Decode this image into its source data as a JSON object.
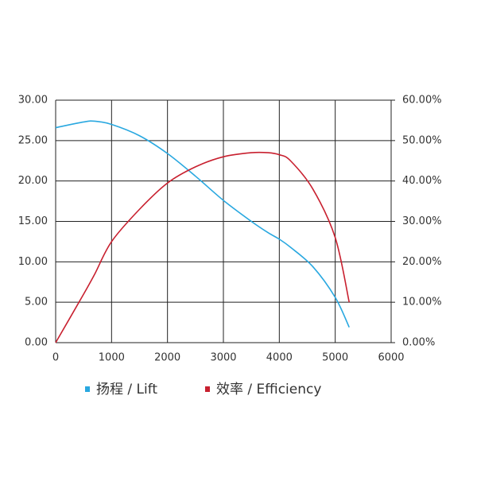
{
  "chart_data": {
    "type": "line",
    "x": [
      0,
      500,
      700,
      1000,
      1500,
      2000,
      2500,
      3000,
      3500,
      3800,
      4000,
      4200,
      4600,
      5000,
      5250
    ],
    "series": [
      {
        "name": "扬程 / Lift",
        "color": "#29a8e0",
        "axis": "y",
        "values": [
          26.6,
          27.3,
          27.4,
          27.0,
          25.6,
          23.4,
          20.6,
          17.6,
          15.0,
          13.6,
          12.8,
          11.8,
          9.4,
          5.6,
          1.9
        ]
      },
      {
        "name": "效率 / Efficiency",
        "color": "#c8202f",
        "axis": "y2",
        "values": [
          0,
          12,
          17,
          25,
          33,
          39.5,
          43.5,
          46,
          47,
          47,
          46.5,
          45,
          38,
          26,
          10
        ]
      }
    ],
    "xlim": [
      0,
      6000
    ],
    "xticks": [
      0,
      1000,
      2000,
      3000,
      4000,
      5000,
      6000
    ],
    "ylim": [
      0,
      30
    ],
    "yticks": [
      {
        "value": 0,
        "label": "0.00"
      },
      {
        "value": 5,
        "label": "5.00"
      },
      {
        "value": 10,
        "label": "10.00"
      },
      {
        "value": 15,
        "label": "15.00"
      },
      {
        "value": 20,
        "label": "20.00"
      },
      {
        "value": 25,
        "label": "25.00"
      },
      {
        "value": 30,
        "label": "30.00"
      }
    ],
    "y2lim": [
      0,
      60
    ],
    "y2ticks": [
      {
        "value": 0,
        "label": "0.00%"
      },
      {
        "value": 10,
        "label": "10.00%"
      },
      {
        "value": 20,
        "label": "20.00%"
      },
      {
        "value": 30,
        "label": "30.00%"
      },
      {
        "value": 40,
        "label": "40.00%"
      },
      {
        "value": 50,
        "label": "50.00%"
      },
      {
        "value": 60,
        "label": "60.00%"
      }
    ],
    "grid": true
  }
}
